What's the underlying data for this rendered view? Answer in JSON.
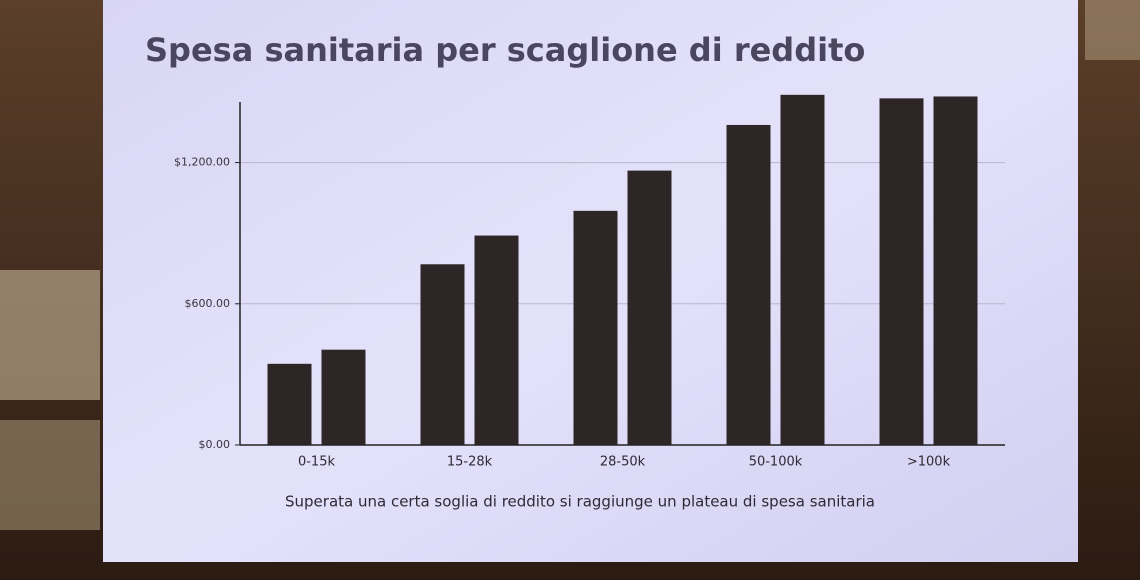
{
  "chart_data": {
    "type": "bar",
    "title": "Spesa sanitaria per scaglione di reddito",
    "caption": "Superata una certa soglia di reddito si raggiunge un plateau di spesa sanitaria",
    "categories": [
      "0-15k",
      "15-28k",
      "28-50k",
      "50-100k",
      ">100k"
    ],
    "series": [
      {
        "color": "#2e2626",
        "values": [
          345,
          768,
          995,
          1360,
          1473
        ]
      },
      {
        "color": "#2e2626",
        "values": [
          405,
          890,
          1166,
          1488,
          1481
        ]
      }
    ],
    "ylim": [
      0,
      1500
    ],
    "yticks": [
      {
        "value": 0,
        "label": "$0.00"
      },
      {
        "value": 600,
        "label": "$600.00"
      },
      {
        "value": 1200,
        "label": "$1,200.00"
      }
    ],
    "grid": true
  }
}
